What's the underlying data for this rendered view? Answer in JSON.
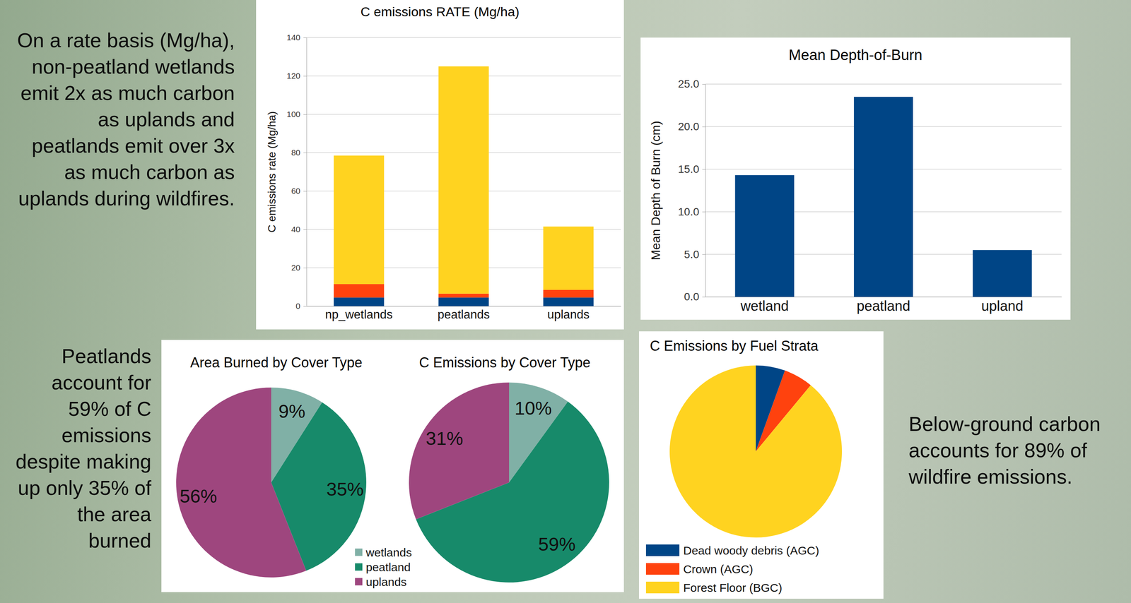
{
  "captions": [
    "On a rate basis (Mg/ha), non-peatland wetlands emit 2x as much carbon as uplands and peatlands emit over 3x as much carbon as uplands during wildfires.",
    "Peatlands account for 59% of C emissions despite making up only 35% of the area burned",
    "Below-ground carbon accounts for 89% of wildfire emissions."
  ],
  "chart_data": [
    {
      "type": "bar",
      "title": "C emissions RATE (Mg/ha)",
      "y_label": "C emissions rate (Mg/ha)",
      "categories": [
        "np_wetlands",
        "peatlands",
        "uplands"
      ],
      "stacked": true,
      "series": [
        {
          "color": "#004586",
          "values": [
            4.5,
            4.5,
            4.5
          ]
        },
        {
          "color": "#ff420e",
          "values": [
            7,
            2,
            4
          ]
        },
        {
          "color": "#ffd320",
          "values": [
            67,
            118.5,
            33
          ]
        }
      ],
      "ylim": [
        0,
        140
      ],
      "yticks": [
        0,
        20,
        40,
        60,
        80,
        100,
        120,
        140
      ],
      "grid": true
    },
    {
      "type": "bar",
      "title": "Mean Depth-of-Burn",
      "y_label": "Mean Depth of Burn (cm)",
      "categories": [
        "wetland",
        "peatland",
        "upland"
      ],
      "values": [
        14.3,
        23.5,
        5.5
      ],
      "color": "#004586",
      "ylim": [
        0,
        25
      ],
      "yticks": [
        {
          "value": 0,
          "label": "0.0"
        },
        {
          "value": 5,
          "label": "5.0"
        },
        {
          "value": 10,
          "label": "10.0"
        },
        {
          "value": 15,
          "label": "15.0"
        },
        {
          "value": 20,
          "label": "20.0"
        },
        {
          "value": 25,
          "label": "25.0"
        }
      ],
      "grid": true
    },
    {
      "type": "pie",
      "title": "Area Burned by Cover Type",
      "values": [
        9,
        35,
        56
      ],
      "value_labels": [
        "9%",
        "35%",
        "56%"
      ],
      "colors": [
        "#80b0a6",
        "#178a6a",
        "#9e467e"
      ],
      "data_labels": true
    },
    {
      "type": "pie",
      "title": "C Emissions by Cover Type",
      "categories": [
        "wetlands",
        "peatland",
        "uplands"
      ],
      "values": [
        10,
        59,
        31
      ],
      "value_labels": [
        "10%",
        "59%",
        "31%"
      ],
      "colors": [
        "#80b0a6",
        "#178a6a",
        "#9e467e"
      ],
      "data_labels": true,
      "legend": "bottom-left"
    },
    {
      "type": "pie",
      "title": "C Emissions by Fuel Strata",
      "categories": [
        "Dead woody debris (AGC)",
        "Crown (AGC)",
        "Forest Floor (BGC)"
      ],
      "values": [
        5.5,
        5.5,
        89
      ],
      "colors": [
        "#004586",
        "#ff420e",
        "#ffd320"
      ],
      "legend": "bottom"
    }
  ]
}
